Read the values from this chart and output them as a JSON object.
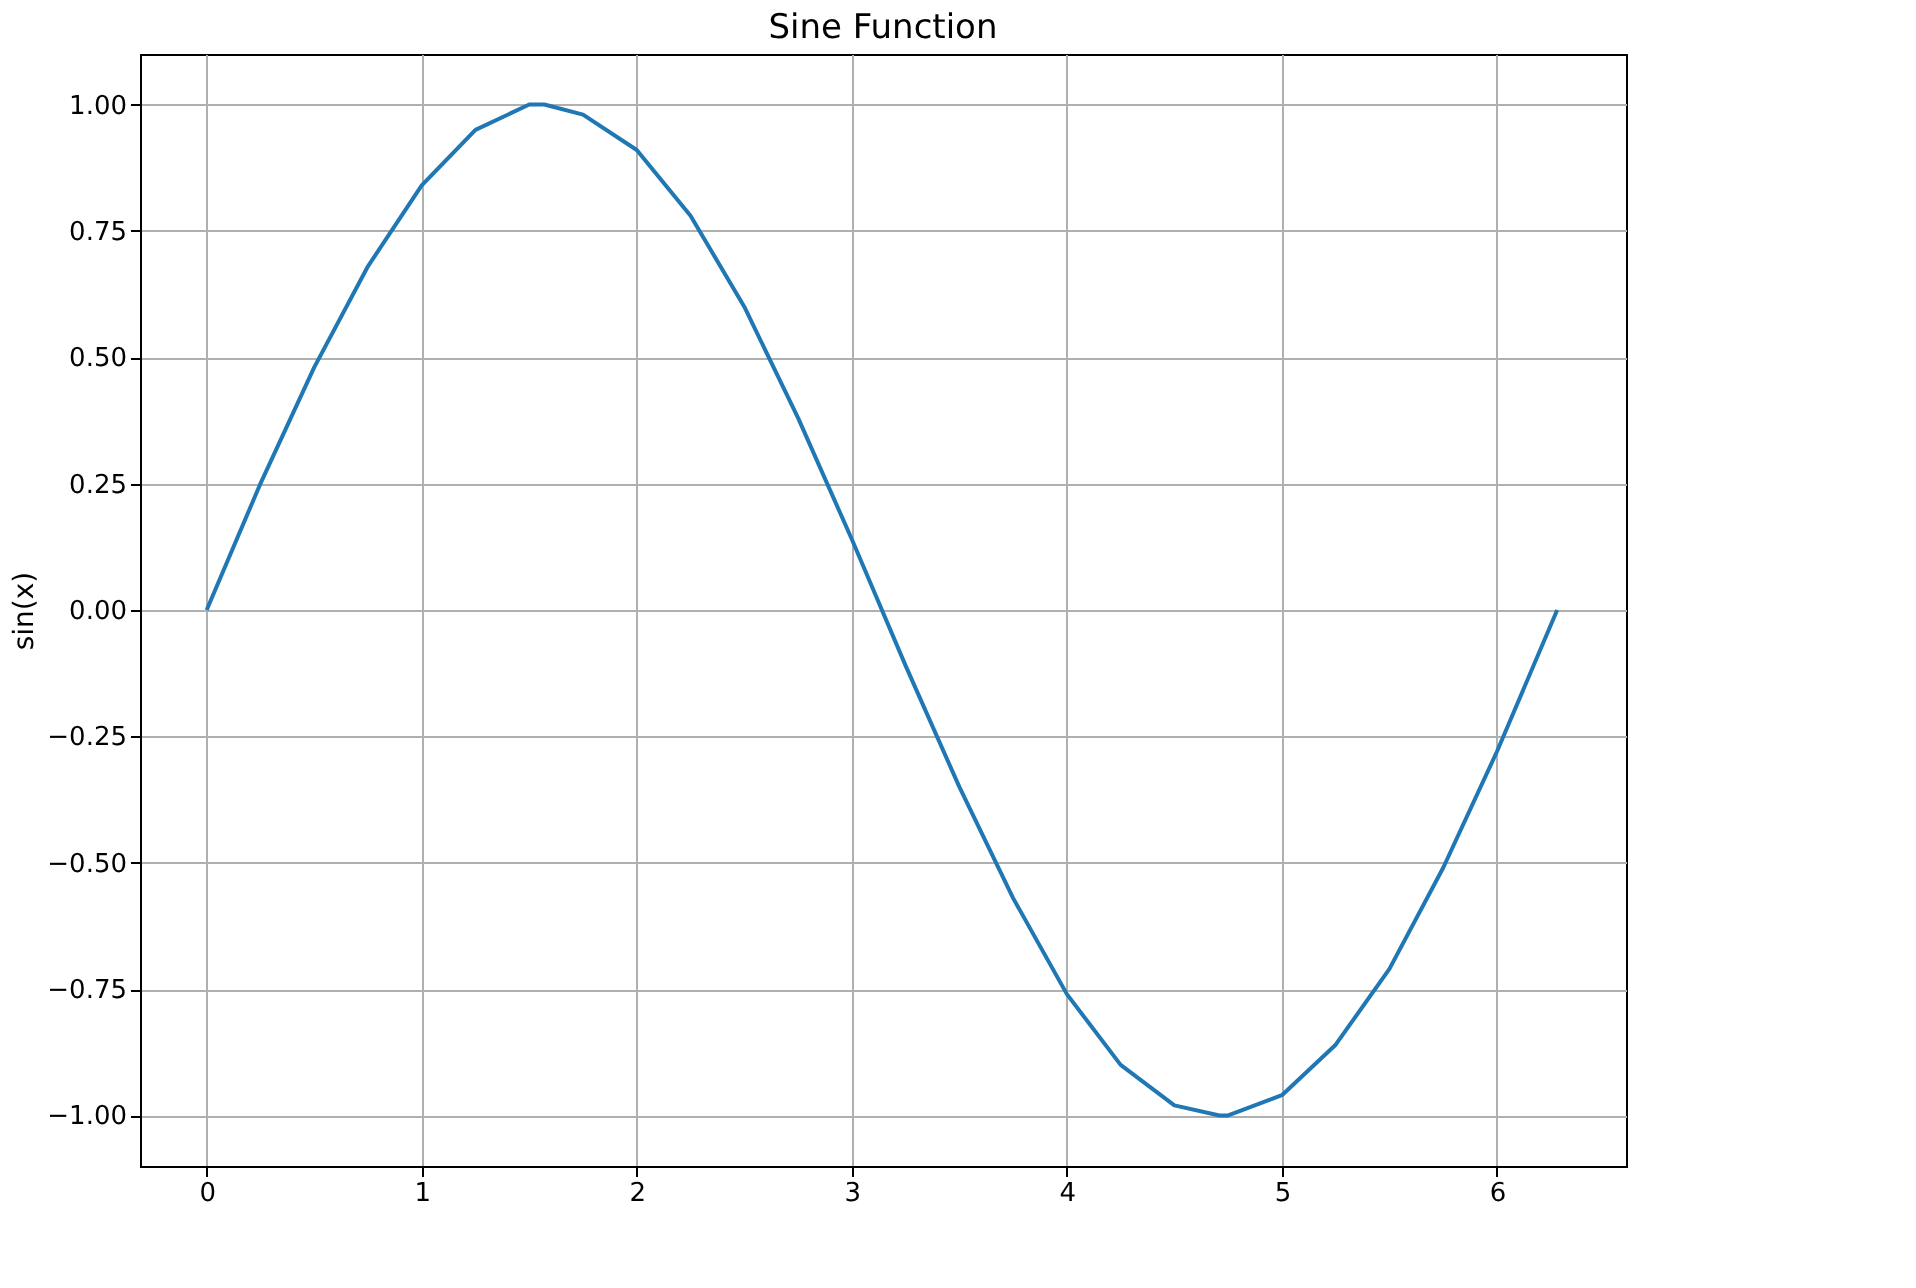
{
  "chart_data": {
    "type": "line",
    "title": "Sine Function",
    "ylabel": "sin(x)",
    "x": [
      0,
      0.25,
      0.5,
      0.75,
      1,
      1.25,
      1.5,
      1.57,
      1.75,
      2,
      2.25,
      2.5,
      2.75,
      3,
      3.25,
      3.5,
      3.75,
      4,
      4.25,
      4.5,
      4.71,
      4.75,
      5,
      5.25,
      5.5,
      5.75,
      6,
      6.28
    ],
    "series": [
      {
        "color": "#1f77b4",
        "values": [
          0,
          0.25,
          0.48,
          0.68,
          0.84,
          0.95,
          1.0,
          1.0,
          0.98,
          0.91,
          0.78,
          0.6,
          0.38,
          0.14,
          -0.11,
          -0.35,
          -0.57,
          -0.76,
          -0.9,
          -0.98,
          -1.0,
          -1.0,
          -0.96,
          -0.86,
          -0.71,
          -0.51,
          -0.28,
          0
        ]
      }
    ],
    "xlim": [
      -0.31,
      6.6
    ],
    "ylim": [
      -1.1,
      1.1
    ],
    "xticks": [
      0,
      1,
      2,
      3,
      4,
      5,
      6
    ],
    "yticks": [
      {
        "value": -1,
        "label": "−1.00"
      },
      {
        "value": -0.75,
        "label": "−0.75"
      },
      {
        "value": -0.5,
        "label": "−0.50"
      },
      {
        "value": -0.25,
        "label": "−0.25"
      },
      {
        "value": 0,
        "label": "0.00"
      },
      {
        "value": 0.25,
        "label": "0.25"
      },
      {
        "value": 0.5,
        "label": "0.50"
      },
      {
        "value": 0.75,
        "label": "0.75"
      },
      {
        "value": 1,
        "label": "1.00"
      }
    ],
    "grid": true,
    "marker": "none",
    "line_style": "solid"
  }
}
